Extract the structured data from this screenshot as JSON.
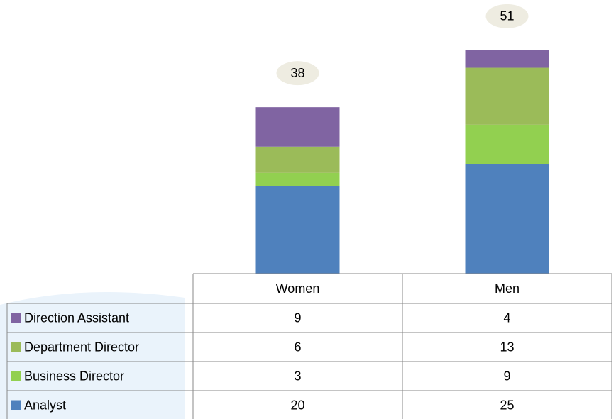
{
  "chart_data": {
    "type": "stacked_bar",
    "categories": [
      "Women",
      "Men"
    ],
    "series": [
      {
        "name": "Analyst",
        "color": "#4f81bd",
        "values": [
          20,
          25
        ]
      },
      {
        "name": "Business Director",
        "color": "#92d050",
        "values": [
          3,
          9
        ]
      },
      {
        "name": "Department Director",
        "color": "#9bbb59",
        "values": [
          6,
          13
        ]
      },
      {
        "name": "Direction Assistant",
        "color": "#8064a2",
        "values": [
          9,
          4
        ]
      }
    ],
    "totals": [
      38,
      51
    ],
    "data_table": true
  }
}
